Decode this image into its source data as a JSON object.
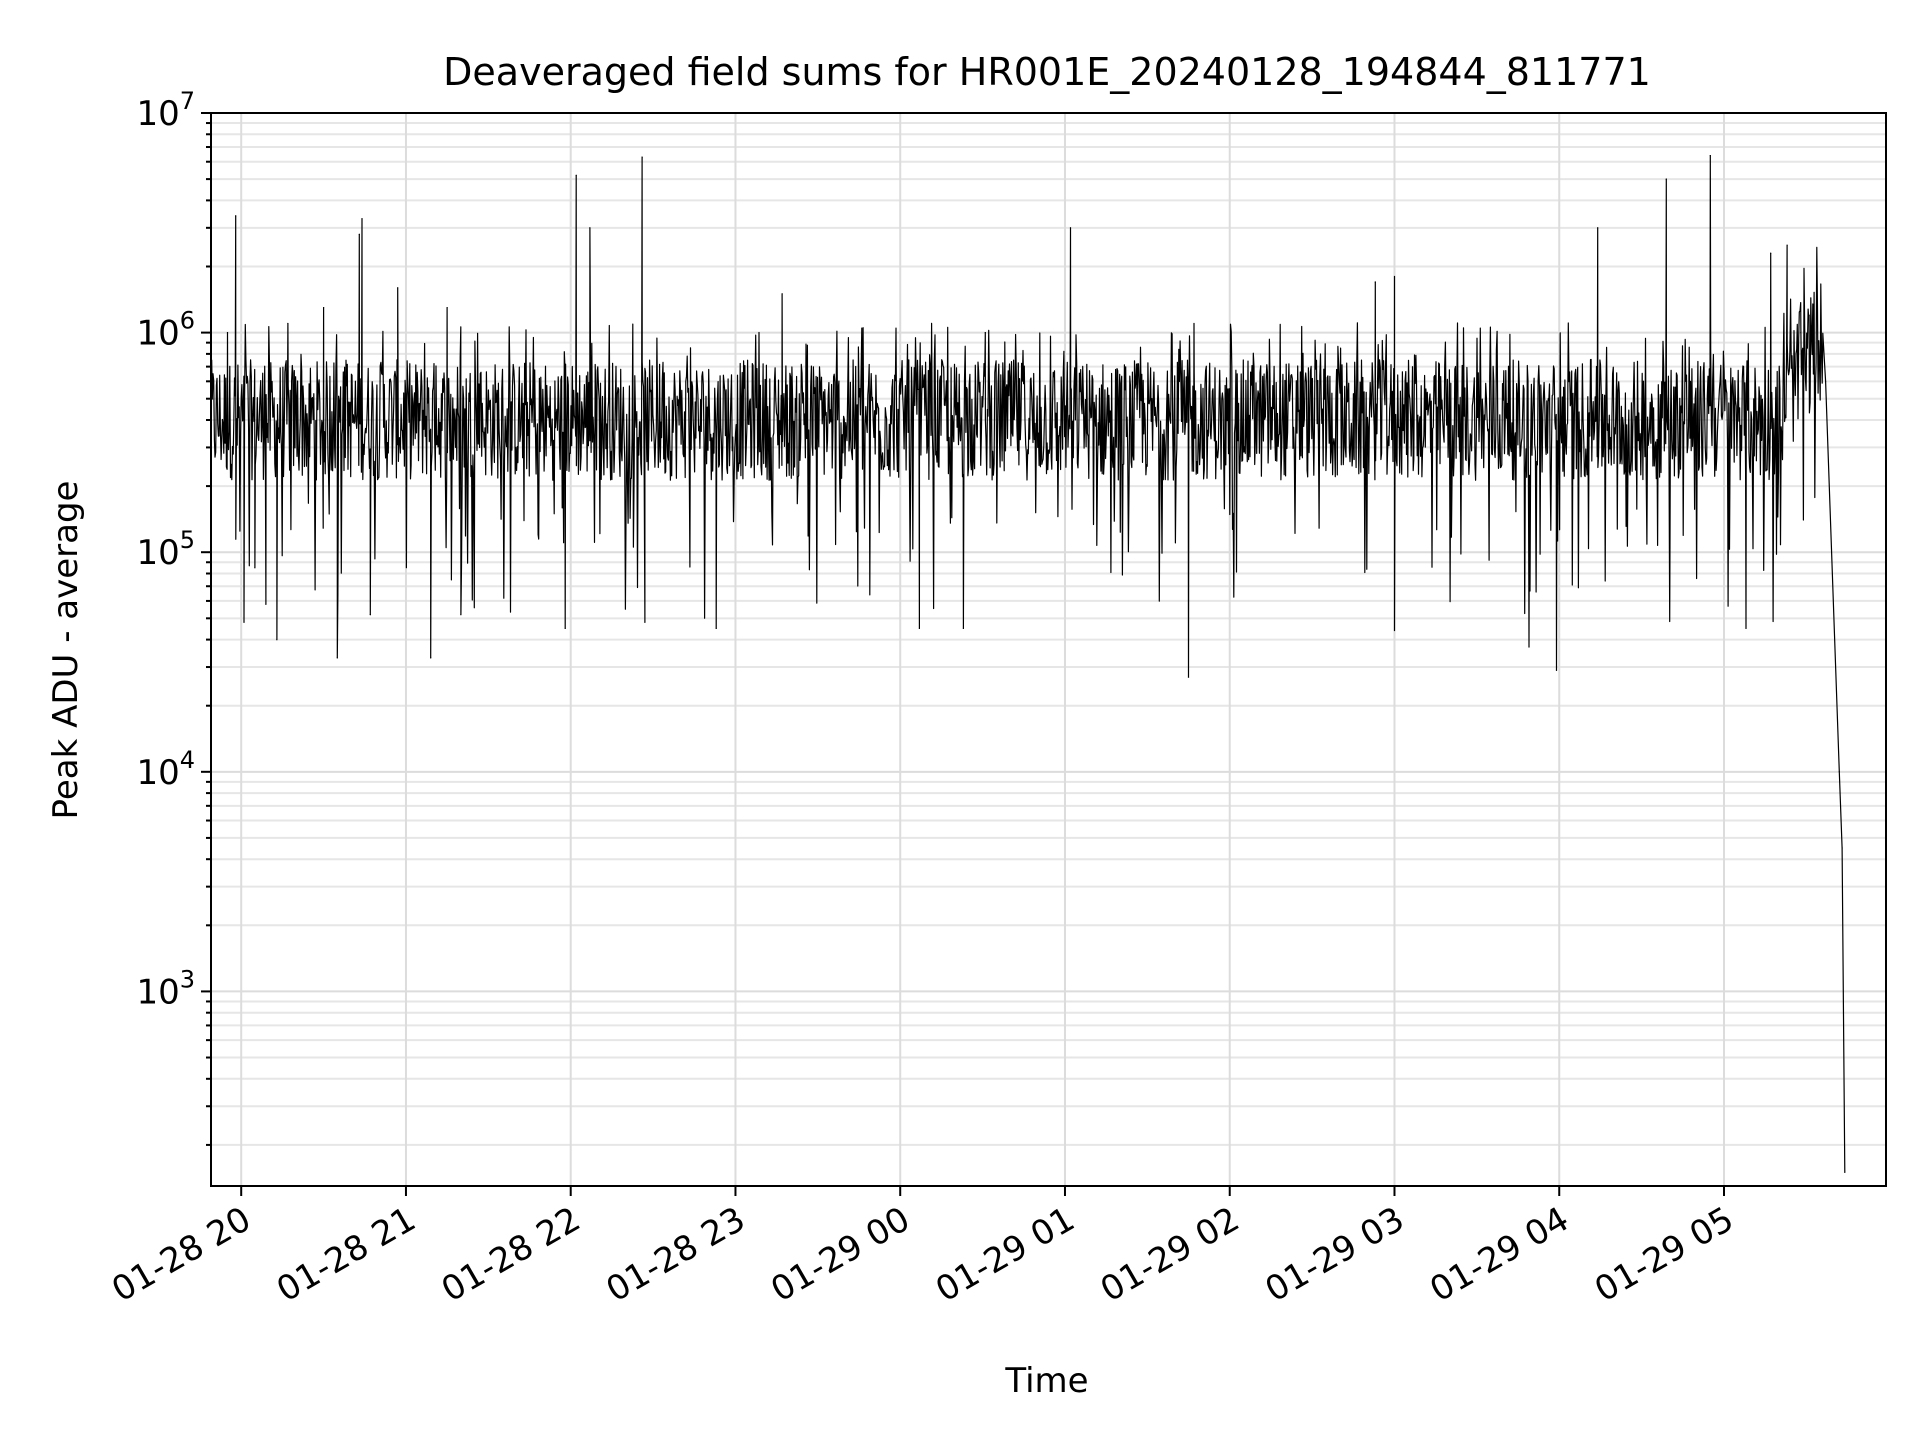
{
  "chart_data": {
    "type": "line",
    "title": "Deaveraged field sums for HR001E_20240128_194844_811771",
    "xlabel": "Time",
    "ylabel": "Peak ADU - average",
    "yscale": "log",
    "ylim": [
      130,
      10000000
    ],
    "xlim": [
      "2024-01-28 19:49",
      "2024-01-29 05:59"
    ],
    "grid": true,
    "line_color": "#000000",
    "xticks": [
      {
        "label": "01-28 20",
        "value": "2024-01-28 20:00"
      },
      {
        "label": "01-28 21",
        "value": "2024-01-28 21:00"
      },
      {
        "label": "01-28 22",
        "value": "2024-01-28 22:00"
      },
      {
        "label": "01-28 23",
        "value": "2024-01-28 23:00"
      },
      {
        "label": "01-29 00",
        "value": "2024-01-29 00:00"
      },
      {
        "label": "01-29 01",
        "value": "2024-01-29 01:00"
      },
      {
        "label": "01-29 02",
        "value": "2024-01-29 02:00"
      },
      {
        "label": "01-29 03",
        "value": "2024-01-29 03:00"
      },
      {
        "label": "01-29 04",
        "value": "2024-01-29 04:00"
      },
      {
        "label": "01-29 05",
        "value": "2024-01-29 05:00"
      }
    ],
    "yticks": [
      {
        "base": "10",
        "exp": "3",
        "value": 1000
      },
      {
        "base": "10",
        "exp": "4",
        "value": 10000
      },
      {
        "base": "10",
        "exp": "5",
        "value": 100000
      },
      {
        "base": "10",
        "exp": "6",
        "value": 1000000
      },
      {
        "base": "10",
        "exp": "7",
        "value": 10000000
      }
    ],
    "series": [
      {
        "baseline_value": 400000,
        "points": [
          [
            "2024-01-28 19:49",
            380000
          ],
          [
            "2024-01-28 19:55",
            1000000
          ],
          [
            "2024-01-28 19:58",
            3400000
          ],
          [
            "2024-01-28 20:01",
            48000
          ],
          [
            "2024-01-28 20:05",
            85000
          ],
          [
            "2024-01-28 20:09",
            58000
          ],
          [
            "2024-01-28 20:13",
            40000
          ],
          [
            "2024-01-28 20:17",
            1100000
          ],
          [
            "2024-01-28 20:30",
            1300000
          ],
          [
            "2024-01-28 20:35",
            33000
          ],
          [
            "2024-01-28 20:43",
            2800000
          ],
          [
            "2024-01-28 20:44",
            3300000
          ],
          [
            "2024-01-28 20:47",
            52000
          ],
          [
            "2024-01-28 20:57",
            1600000
          ],
          [
            "2024-01-28 21:09",
            33000
          ],
          [
            "2024-01-28 21:15",
            1300000
          ],
          [
            "2024-01-28 21:20",
            52000
          ],
          [
            "2024-01-28 21:58",
            45000
          ],
          [
            "2024-01-28 22:02",
            5200000
          ],
          [
            "2024-01-28 22:07",
            3000000
          ],
          [
            "2024-01-28 22:26",
            6300000
          ],
          [
            "2024-01-28 22:27",
            48000
          ],
          [
            "2024-01-28 22:53",
            45000
          ],
          [
            "2024-01-28 23:17",
            1500000
          ],
          [
            "2024-01-29 00:07",
            45000
          ],
          [
            "2024-01-29 00:23",
            45000
          ],
          [
            "2024-01-29 00:31",
            1000000
          ],
          [
            "2024-01-29 01:02",
            3000000
          ],
          [
            "2024-01-29 01:45",
            27000
          ],
          [
            "2024-01-29 01:47",
            1100000
          ],
          [
            "2024-01-29 02:53",
            1700000
          ],
          [
            "2024-01-29 03:00",
            1800000
          ],
          [
            "2024-01-29 03:00",
            44000
          ],
          [
            "2024-01-29 03:49",
            37000
          ],
          [
            "2024-01-29 03:59",
            29000
          ],
          [
            "2024-01-29 04:14",
            3000000
          ],
          [
            "2024-01-29 04:39",
            5000000
          ],
          [
            "2024-01-29 04:55",
            6400000
          ],
          [
            "2024-01-29 05:08",
            45000
          ],
          [
            "2024-01-29 05:17",
            2300000
          ],
          [
            "2024-01-29 05:23",
            2500000
          ],
          [
            "2024-01-29 05:28",
            1000000
          ],
          [
            "2024-01-29 05:31",
            1200000
          ],
          [
            "2024-01-29 05:37",
            600000
          ],
          [
            "2024-01-29 05:42",
            10000
          ],
          [
            "2024-01-29 05:43",
            4500
          ],
          [
            "2024-01-29 05:44",
            150
          ]
        ]
      }
    ]
  }
}
